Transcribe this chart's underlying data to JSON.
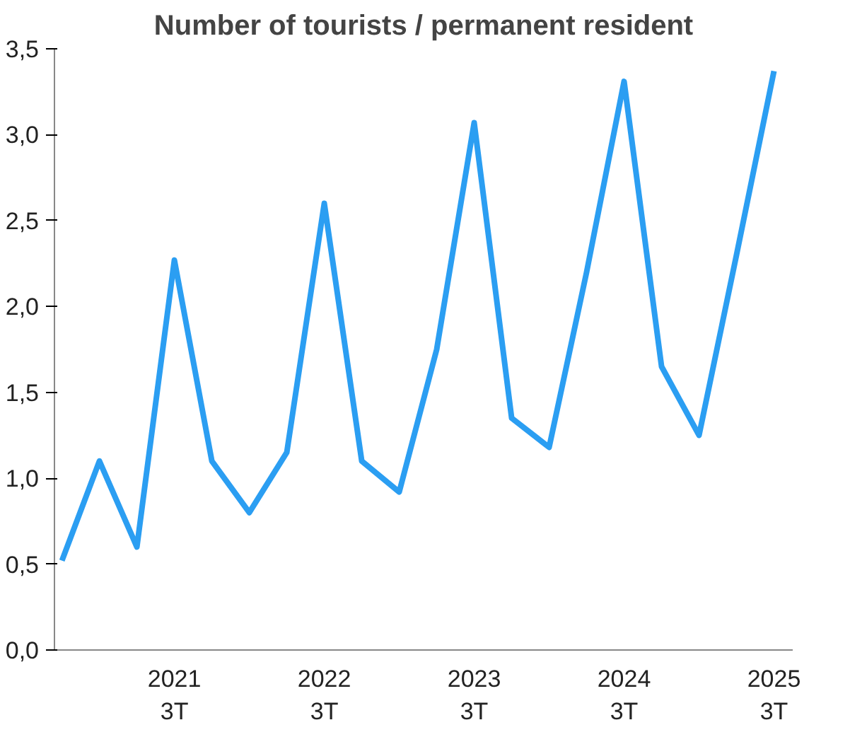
{
  "chart_data": {
    "type": "line",
    "title": "Number of tourists / permanent resident",
    "categories": [
      null,
      null,
      null,
      "2021\n3T",
      null,
      null,
      null,
      "2022\n3T",
      null,
      null,
      null,
      "2023\n3T",
      null,
      null,
      null,
      "2024\n3T",
      null,
      null,
      null,
      "2025\n3T"
    ],
    "series": [
      {
        "color": "#2b9ef2",
        "values": [
          0.52,
          1.1,
          0.6,
          2.27,
          1.1,
          0.8,
          1.15,
          2.6,
          1.1,
          0.92,
          1.75,
          3.07,
          1.35,
          1.18,
          2.2,
          3.31,
          1.65,
          1.25,
          2.3,
          3.37
        ]
      }
    ],
    "ylim": [
      0,
      3.5
    ],
    "yticks": [
      {
        "value": 0,
        "label": "0,0"
      },
      {
        "value": 0.5,
        "label": "0,5"
      },
      {
        "value": 1,
        "label": "1,0"
      },
      {
        "value": 1.5,
        "label": "1,5"
      },
      {
        "value": 2,
        "label": "2,0"
      },
      {
        "value": 2.5,
        "label": "2,5"
      },
      {
        "value": 3,
        "label": "3,0"
      },
      {
        "value": 3.5,
        "label": "3,5"
      }
    ],
    "grid": false,
    "marker": "none",
    "line_style": "solid"
  }
}
